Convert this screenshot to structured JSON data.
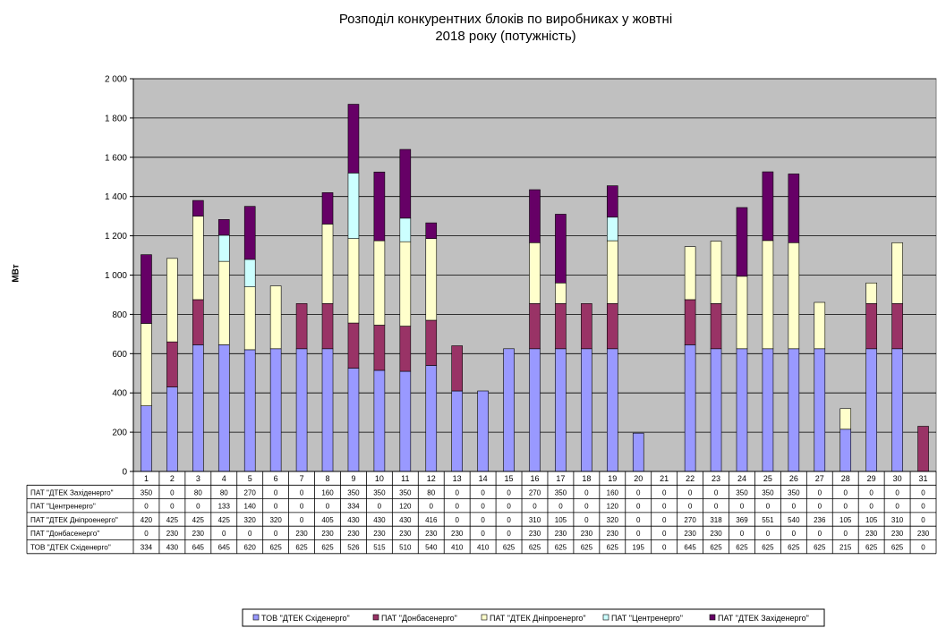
{
  "chart_data": {
    "type": "bar",
    "stacked": true,
    "title_lines": [
      "Розподіл конкурентних  блоків по виробниках  у жовтні",
      "2018 року (потужність)"
    ],
    "ylabel": "МВт",
    "ylim": [
      0,
      2000
    ],
    "yticks": [
      "0",
      "200",
      "400",
      "600",
      "800",
      "1 000",
      "1 200",
      "1 400",
      "1 600",
      "1 800",
      "2 000"
    ],
    "categories": [
      "1",
      "2",
      "3",
      "4",
      "5",
      "6",
      "7",
      "8",
      "9",
      "10",
      "11",
      "12",
      "13",
      "14",
      "15",
      "16",
      "17",
      "18",
      "19",
      "20",
      "21",
      "22",
      "23",
      "24",
      "25",
      "26",
      "27",
      "28",
      "29",
      "30",
      "31"
    ],
    "grid": true,
    "plot_background": "#c0c0c0",
    "legend_position": "bottom",
    "series": [
      {
        "name": "ТОВ \"ДТЕК Східенерго\"",
        "legend": "ТОВ \"ДТЕК Східенерго\"",
        "color": "#9999ff",
        "values": [
          334,
          430,
          645,
          645,
          620,
          625,
          625,
          625,
          526,
          515,
          510,
          540,
          410,
          410,
          625,
          625,
          625,
          625,
          625,
          195,
          0,
          645,
          625,
          625,
          625,
          625,
          625,
          215,
          625,
          625,
          0
        ]
      },
      {
        "name": "ПАТ \"Донбасенерго\"",
        "legend": "ПАТ \"Донбасенерго\"",
        "color": "#993366",
        "values": [
          0,
          230,
          230,
          0,
          0,
          0,
          230,
          230,
          230,
          230,
          230,
          230,
          230,
          0,
          0,
          230,
          230,
          230,
          230,
          0,
          0,
          230,
          230,
          0,
          0,
          0,
          0,
          0,
          230,
          230,
          230
        ]
      },
      {
        "name": "ПАТ \"ДТЕК Дніпроенерго\"",
        "legend": "ПАТ \"ДТЕК Дніпроенерго\"",
        "color": "#ffffcc",
        "values": [
          420,
          425,
          425,
          425,
          320,
          320,
          0,
          405,
          430,
          430,
          430,
          416,
          0,
          0,
          0,
          310,
          105,
          0,
          320,
          0,
          0,
          270,
          318,
          369,
          551,
          540,
          236,
          105,
          105,
          310,
          0
        ]
      },
      {
        "name": "ПАТ \"Центренерго\"",
        "legend": "ПАТ \"Центренерго\"",
        "color": "#ccffff",
        "values": [
          0,
          0,
          0,
          133,
          140,
          0,
          0,
          0,
          334,
          0,
          120,
          0,
          0,
          0,
          0,
          0,
          0,
          0,
          120,
          0,
          0,
          0,
          0,
          0,
          0,
          0,
          0,
          0,
          0,
          0,
          0
        ]
      },
      {
        "name": "ПАТ \"ДТЕК Західенерго\"",
        "legend": "ПАТ \"ДТЕК Західенерго\"",
        "color": "#660066",
        "values": [
          350,
          0,
          80,
          80,
          270,
          0,
          0,
          160,
          350,
          350,
          350,
          80,
          0,
          0,
          0,
          270,
          350,
          0,
          160,
          0,
          0,
          0,
          0,
          350,
          350,
          350,
          0,
          0,
          0,
          0,
          0
        ]
      }
    ],
    "table_row_order": [
      4,
      3,
      2,
      1,
      0
    ]
  }
}
